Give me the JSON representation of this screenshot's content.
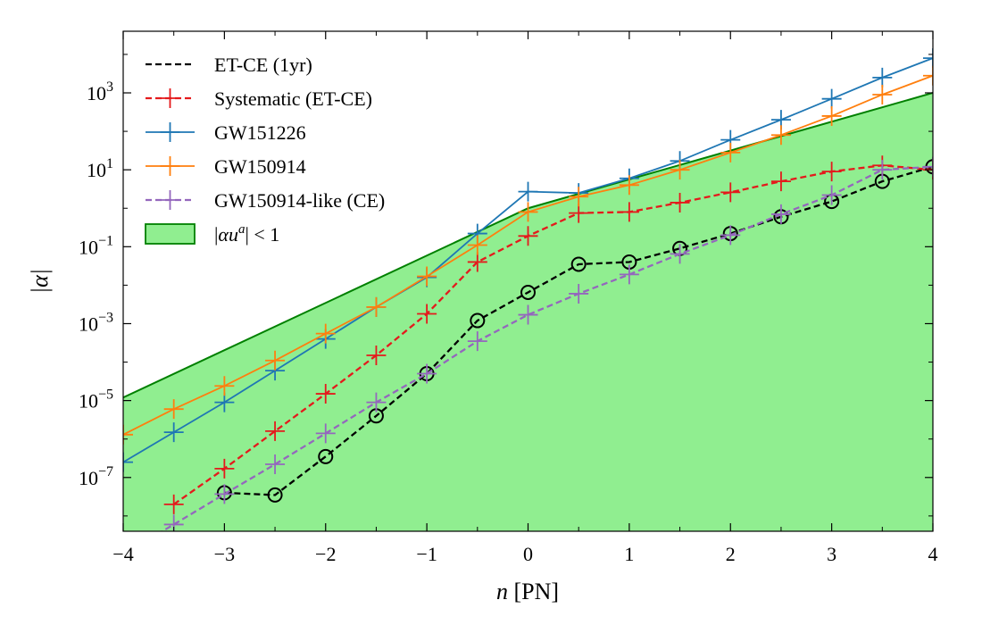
{
  "chart_data": {
    "type": "line",
    "xlabel": "n [PN]",
    "ylabel": "|α|",
    "xlim": [
      -4,
      4
    ],
    "ylim": [
      4e-09,
      40000
    ],
    "yscale": "log",
    "grid": false,
    "legend_position": "upper-left",
    "x_ticks": [
      "−4",
      "−3",
      "−2",
      "−1",
      "0",
      "1",
      "2",
      "3",
      "4"
    ],
    "y_ticks": [
      {
        "value": 1e-07,
        "base": "10",
        "exp": "−7"
      },
      {
        "value": 1e-05,
        "base": "10",
        "exp": "−5"
      },
      {
        "value": 0.001,
        "base": "10",
        "exp": "−3"
      },
      {
        "value": 0.1,
        "base": "10",
        "exp": "−1"
      },
      {
        "value": 10,
        "base": "10",
        "exp": "1"
      },
      {
        "value": 1000,
        "base": "10",
        "exp": "3"
      }
    ],
    "region": {
      "name": "|αu^a| < 1",
      "legend_parts": [
        "|",
        "αu",
        "a",
        "| < 1"
      ],
      "fill": "#90ee90",
      "edge": "#008000",
      "boundary": [
        {
          "x": -4,
          "y": 1.2e-05
        },
        {
          "x": 0,
          "y": 1.0
        },
        {
          "x": 4,
          "y": 1000
        }
      ]
    },
    "series": [
      {
        "name": "ET-CE (1yr)",
        "color": "#000000",
        "dashed": true,
        "marker": "circle",
        "x": [
          -3,
          -2.5,
          -2,
          -1.5,
          -1,
          -0.5,
          0,
          0.5,
          1,
          1.5,
          2,
          2.5,
          3,
          3.5,
          4
        ],
        "y": [
          4e-08,
          3.5e-08,
          3.5e-07,
          4e-06,
          5e-05,
          0.0012,
          0.0065,
          0.035,
          0.04,
          0.09,
          0.22,
          0.6,
          1.5,
          5,
          12
        ]
      },
      {
        "name": "Systematic (ET-CE)",
        "color": "#e41a1c",
        "dashed": true,
        "marker": "plus",
        "x": [
          -3.5,
          -3,
          -2.5,
          -2,
          -1.5,
          -1,
          -0.5,
          0,
          0.5,
          1,
          1.5,
          2,
          2.5,
          3,
          3.5,
          4
        ],
        "y": [
          2e-08,
          1.7e-07,
          1.6e-06,
          1.5e-05,
          0.00015,
          0.0018,
          0.04,
          0.19,
          0.75,
          0.8,
          1.4,
          2.6,
          5,
          9,
          13,
          10
        ]
      },
      {
        "name": "GW151226",
        "color": "#1f77b4",
        "dashed": false,
        "marker": "plus",
        "x": [
          -4,
          -3.5,
          -3,
          -2.5,
          -2,
          -1.5,
          -1,
          -0.5,
          0,
          0.5,
          1,
          1.5,
          2,
          2.5,
          3,
          3.5,
          4
        ],
        "y": [
          2.5e-07,
          1.5e-06,
          9e-06,
          6e-05,
          0.0004,
          0.0027,
          0.016,
          0.22,
          2.7,
          2.5,
          6,
          17,
          60,
          200,
          700,
          2500,
          8000
        ]
      },
      {
        "name": "GW150914",
        "color": "#ff7f0e",
        "dashed": false,
        "marker": "plus",
        "x": [
          -4,
          -3.5,
          -3,
          -2.5,
          -2,
          -1.5,
          -1,
          -0.5,
          0,
          0.5,
          1,
          1.5,
          2,
          2.5,
          3,
          3.5,
          4
        ],
        "y": [
          1.3e-06,
          6e-06,
          2.4e-05,
          0.00011,
          0.00055,
          0.0027,
          0.017,
          0.11,
          0.8,
          2,
          4,
          10,
          28,
          80,
          250,
          900,
          2800
        ]
      },
      {
        "name": "GW150914-like (CE)",
        "color": "#9467bd",
        "dashed": true,
        "marker": "plus",
        "x": [
          -4,
          -3.5,
          -3,
          -2.5,
          -2,
          -1.5,
          -1,
          -0.5,
          0,
          0.5,
          1,
          1.5,
          2,
          2.5,
          3,
          3.5,
          4
        ],
        "y": [
          1e-09,
          6e-09,
          3.7e-08,
          2.2e-07,
          1.4e-06,
          9e-06,
          5e-05,
          0.00035,
          0.0017,
          0.006,
          0.019,
          0.065,
          0.2,
          0.7,
          2.2,
          10,
          12
        ]
      }
    ]
  }
}
